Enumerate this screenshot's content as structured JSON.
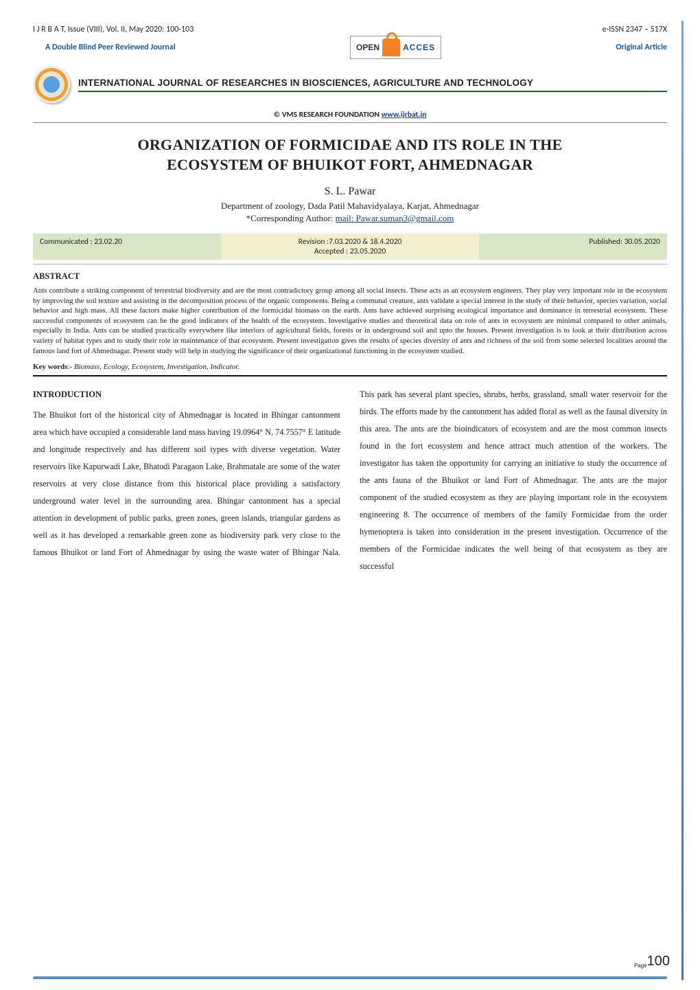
{
  "masthead": {
    "journal_ref": "I J R B A T, Issue (VIII), Vol. II, May 2020: 100-103",
    "issn": "e-ISSN 2347 – 517X",
    "peer_review": "A Double Blind Peer Reviewed Journal",
    "article_type": "Original Article",
    "open_access_open": "OPEN",
    "open_access_acces": "ACCES"
  },
  "banner": {
    "journal_title": "INTERNATIONAL JOURNAL OF RESEARCHES IN BIOSCIENCES, AGRICULTURE AND TECHNOLOGY",
    "foundation_prefix": "© VMS RESEARCH FOUNDATION   ",
    "foundation_link_text": "www.ijrbat.in"
  },
  "paper": {
    "title_line1": "ORGANIZATION OF FORMICIDAE AND ITS ROLE IN THE",
    "title_line2": "ECOSYSTEM OF BHUIKOT FORT, AHMEDNAGAR",
    "author": "S. L. Pawar",
    "affiliation": "Department of zoology, Dada Patil Mahavidyalaya, Karjat, Ahmednagar",
    "corresponding_prefix": "*Corresponding Author: ",
    "corresponding_email": "mail: Pawar.suman3@gmail.com"
  },
  "dates": {
    "communicated": "Communicated : 23.02.20",
    "revision_l1": "Revision :7.03.2020 & 18.4.2020",
    "revision_l2": "Accepted : 23.05.2020",
    "published": "Published: 30.05.2020"
  },
  "abstract": {
    "head": "ABSTRACT",
    "body": "Ants contribute a striking component of terrestrial biodiversity and are the most contradictory group among all social insects. These acts as an ecosystem engineers. They play very important role in the ecosystem by improving the soil texture and assisting in the decomposition process of the organic components. Being a communal creature, ants validate a special interest in the study of their behavior, species variation, social behavior and high mass. All these factors make higher contribution of the formicidal biomass on the earth. Ants have achieved surprising ecological importance and dominance in terrestrial ecosystem. These successful components of ecosystem can be the good indicators of the health of the ecosystem. Investigative studies and theoretical data on role of ants in ecosystem are minimal compared to other animals, especially in India. Ants can be studied practically everywhere like interiors of agricultural fields, forests or in underground soil and upto the houses. Present investigation is to look at their distribution across variety of habitat types and to study their role in maintenance of that ecosystem. Present investigation gives the results of species diversity of ants and richness of the soil from some selected localities around the famous land fort of Ahmednagar. Present study will help in studying the significance of their organizational functioning in the ecosystem studied."
  },
  "keywords": {
    "label": "Key words",
    "sep": ":- ",
    "value": "Biomass, Ecology, Ecosystem, Investigation, Indicator."
  },
  "intro": {
    "head": "INTRODUCTION",
    "body": "The Bhuikot fort of the historical city of Ahmednagar is located in Bhingar cantonment area which have occupied a considerable land mass having 19.0964° N, 74.7557° E latitude and longitude respectively and has different soil types with diverse vegetation. Water reservoirs like Kapurwadi Lake, Bhatodi Paragaon Lake, Brahmatale are some of the water reservoirs at very close distance from this historical place providing a satisfactory underground water level in the surrounding area. Bhingar cantonment has a special attention in development of public parks, green zones, green islands, triangular gardens as well as it has developed a remarkable green zone as biodiversity park very close to the famous Bhuikot or land Fort of Ahmednagar by using the waste water of Bhingar Nala. This park has several plant species, shrubs, herbs, grassland, small water reservoir for the birds. The efforts made by the cantonment has added floral as well as the faunal diversity in this area. The ants are the bioindicators of ecosystem and are the most common insects found in the fort ecosystem and hence attract much attention of the workers. The investigator has taken the opportunity for carrying an initiative to study the occurrence of the ants fauna of the Bhuikot or land Fort of Ahmednagar. The ants are the major component of the studied ecosystem as they are playing important role in the ecosystem engineering 8. The occurrence of members of the family Formicidae from the order hymenoptera is taken into consideration in the present investigation. Occurrence of the members of the Formicidae indicates the well being of that ecosystem as they are successful"
  },
  "pagenum": {
    "label": "Page",
    "num": "100"
  },
  "colors": {
    "link": "#0645ad",
    "peer_blue": "#1e5a9a",
    "green_rule": "#1a6a2a",
    "bar_green": "#d9e6c6",
    "bar_cream": "#f2efce",
    "side_blue_top": "#6aa9e6",
    "side_blue_bot": "#3a7abf",
    "orange": "#f58220"
  }
}
